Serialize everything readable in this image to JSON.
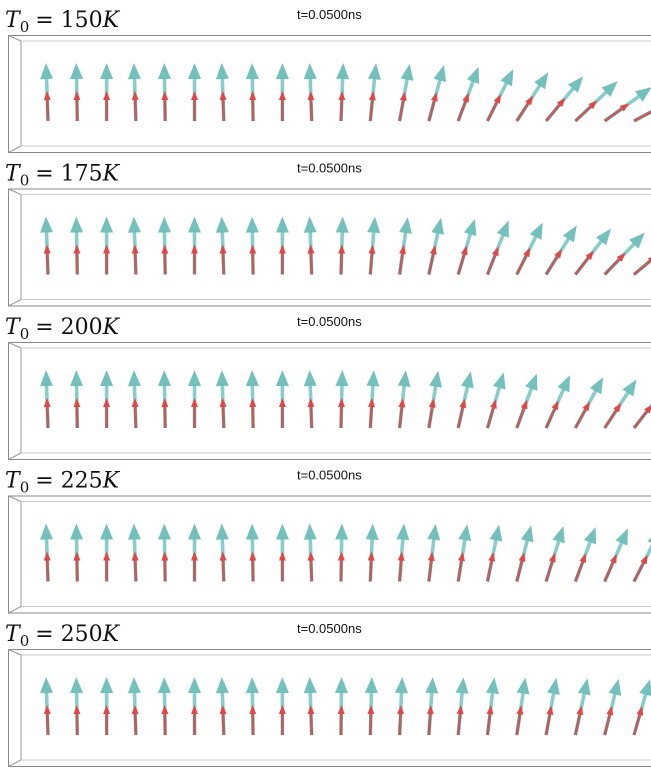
{
  "panels": [
    {
      "symbol": "T",
      "subscript": "0",
      "value": "= 150",
      "unit": "K",
      "time": "t=0.0500ns"
    },
    {
      "symbol": "T",
      "subscript": "0",
      "value": "= 175",
      "unit": "K",
      "time": "t=0.0500ns"
    },
    {
      "symbol": "T",
      "subscript": "0",
      "value": "= 200",
      "unit": "K",
      "time": "t=0.0500ns"
    },
    {
      "symbol": "T",
      "subscript": "0",
      "value": "= 225",
      "unit": "K",
      "time": "t=0.0500ns"
    },
    {
      "symbol": "T",
      "subscript": "0",
      "value": "= 250",
      "unit": "K",
      "time": "t=0.0500ns"
    }
  ]
}
